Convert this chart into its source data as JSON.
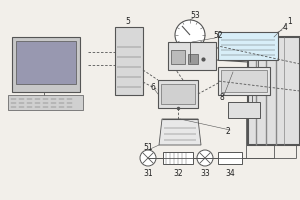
{
  "bg_color": "#f2efea",
  "line_color": "#555555",
  "label_color": "#222222",
  "fig_width": 3.0,
  "fig_height": 2.0,
  "dpi": 100,
  "lw": 0.6
}
